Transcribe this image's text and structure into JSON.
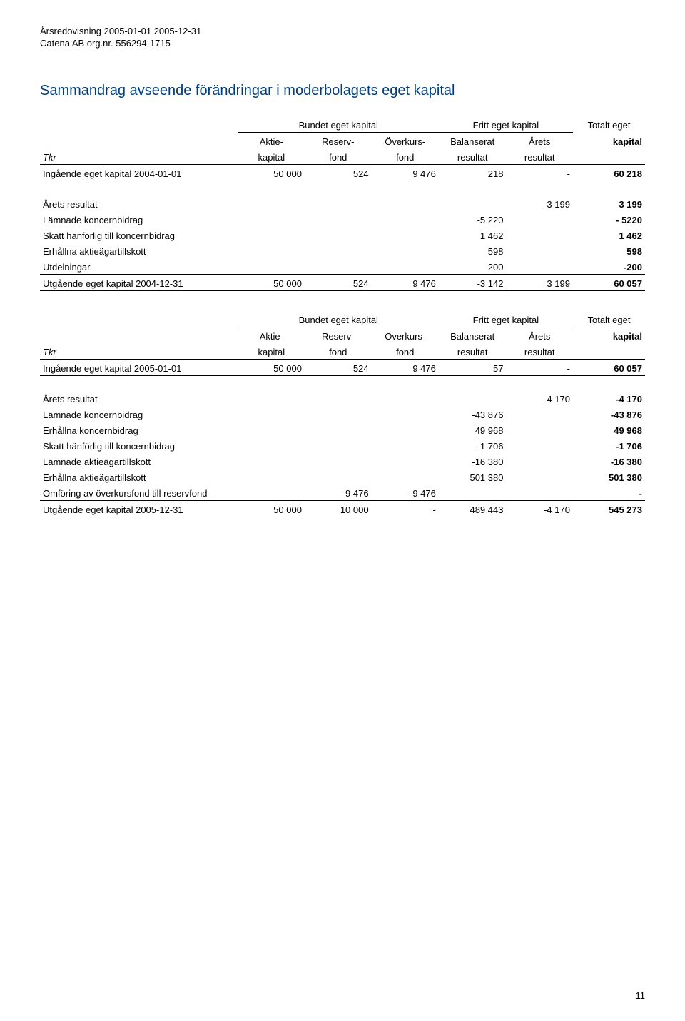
{
  "doc": {
    "period": "Årsredovisning 2005-01-01 2005-12-31",
    "company": "Catena AB org.nr. 556294-1715",
    "page_number": "11"
  },
  "title": "Sammandrag avseende förändringar i moderbolagets eget kapital",
  "group_headers": {
    "bundet": "Bundet eget kapital",
    "fritt": "Fritt eget kapital",
    "totalt_l1": "Totalt eget",
    "totalt_l2": "kapital"
  },
  "col_headers": {
    "tkr": "Tkr",
    "aktie_l1": "Aktie-",
    "aktie_l2": "kapital",
    "reserv_l1": "Reserv-",
    "reserv_l2": "fond",
    "overkurs_l1": "Överkurs-",
    "overkurs_l2": "fond",
    "balanserat_l1": "Balanserat",
    "balanserat_l2": "resultat",
    "arets_l1": "Årets",
    "arets_l2": "resultat"
  },
  "table1": {
    "opening": {
      "label": "Ingående eget kapital 2004-01-01",
      "aktie": "50 000",
      "reserv": "524",
      "overkurs": "9 476",
      "balanserat": "218",
      "arets": "-",
      "total": "60 218"
    },
    "rows": [
      {
        "label": "Årets resultat",
        "arets": "3 199",
        "total": "3 199"
      },
      {
        "label": "Lämnade koncernbidrag",
        "balanserat": "-5 220",
        "total": "- 5220"
      },
      {
        "label": "Skatt hänförlig till koncernbidrag",
        "balanserat": "1 462",
        "total": "1 462"
      },
      {
        "label": "Erhållna aktieägartillskott",
        "balanserat": "598",
        "total": "598"
      },
      {
        "label": "Utdelningar",
        "balanserat": "-200",
        "total": "-200"
      }
    ],
    "closing": {
      "label": "Utgående eget kapital 2004-12-31",
      "aktie": "50 000",
      "reserv": "524",
      "overkurs": "9 476",
      "balanserat": "-3 142",
      "arets": "3 199",
      "total": "60 057"
    }
  },
  "table2": {
    "opening": {
      "label": "Ingående eget kapital 2005-01-01",
      "aktie": "50 000",
      "reserv": "524",
      "overkurs": "9 476",
      "balanserat": "57",
      "arets": "-",
      "total": "60 057"
    },
    "rows": [
      {
        "label": "Årets resultat",
        "arets": "-4 170",
        "total": "-4 170"
      },
      {
        "label": "Lämnade koncernbidrag",
        "balanserat": "-43 876",
        "total": "-43 876"
      },
      {
        "label": "Erhållna koncernbidrag",
        "balanserat": "49 968",
        "total": "49 968"
      },
      {
        "label": "Skatt hänförlig till koncernbidrag",
        "balanserat": "-1 706",
        "total": "-1 706"
      },
      {
        "label": "Lämnade aktieägartillskott",
        "balanserat": "-16 380",
        "total": "-16 380"
      },
      {
        "label": "Erhållna aktieägartillskott",
        "balanserat": "501 380",
        "total": "501 380"
      },
      {
        "label": "Omföring av överkursfond till reservfond",
        "reserv": "9 476",
        "overkurs": "- 9 476",
        "total": "-"
      }
    ],
    "closing": {
      "label": "Utgående eget kapital 2005-12-31",
      "aktie": "50 000",
      "reserv": "10 000",
      "overkurs": "-",
      "balanserat": "489 443",
      "arets": "-4 170",
      "total": "545 273"
    }
  }
}
